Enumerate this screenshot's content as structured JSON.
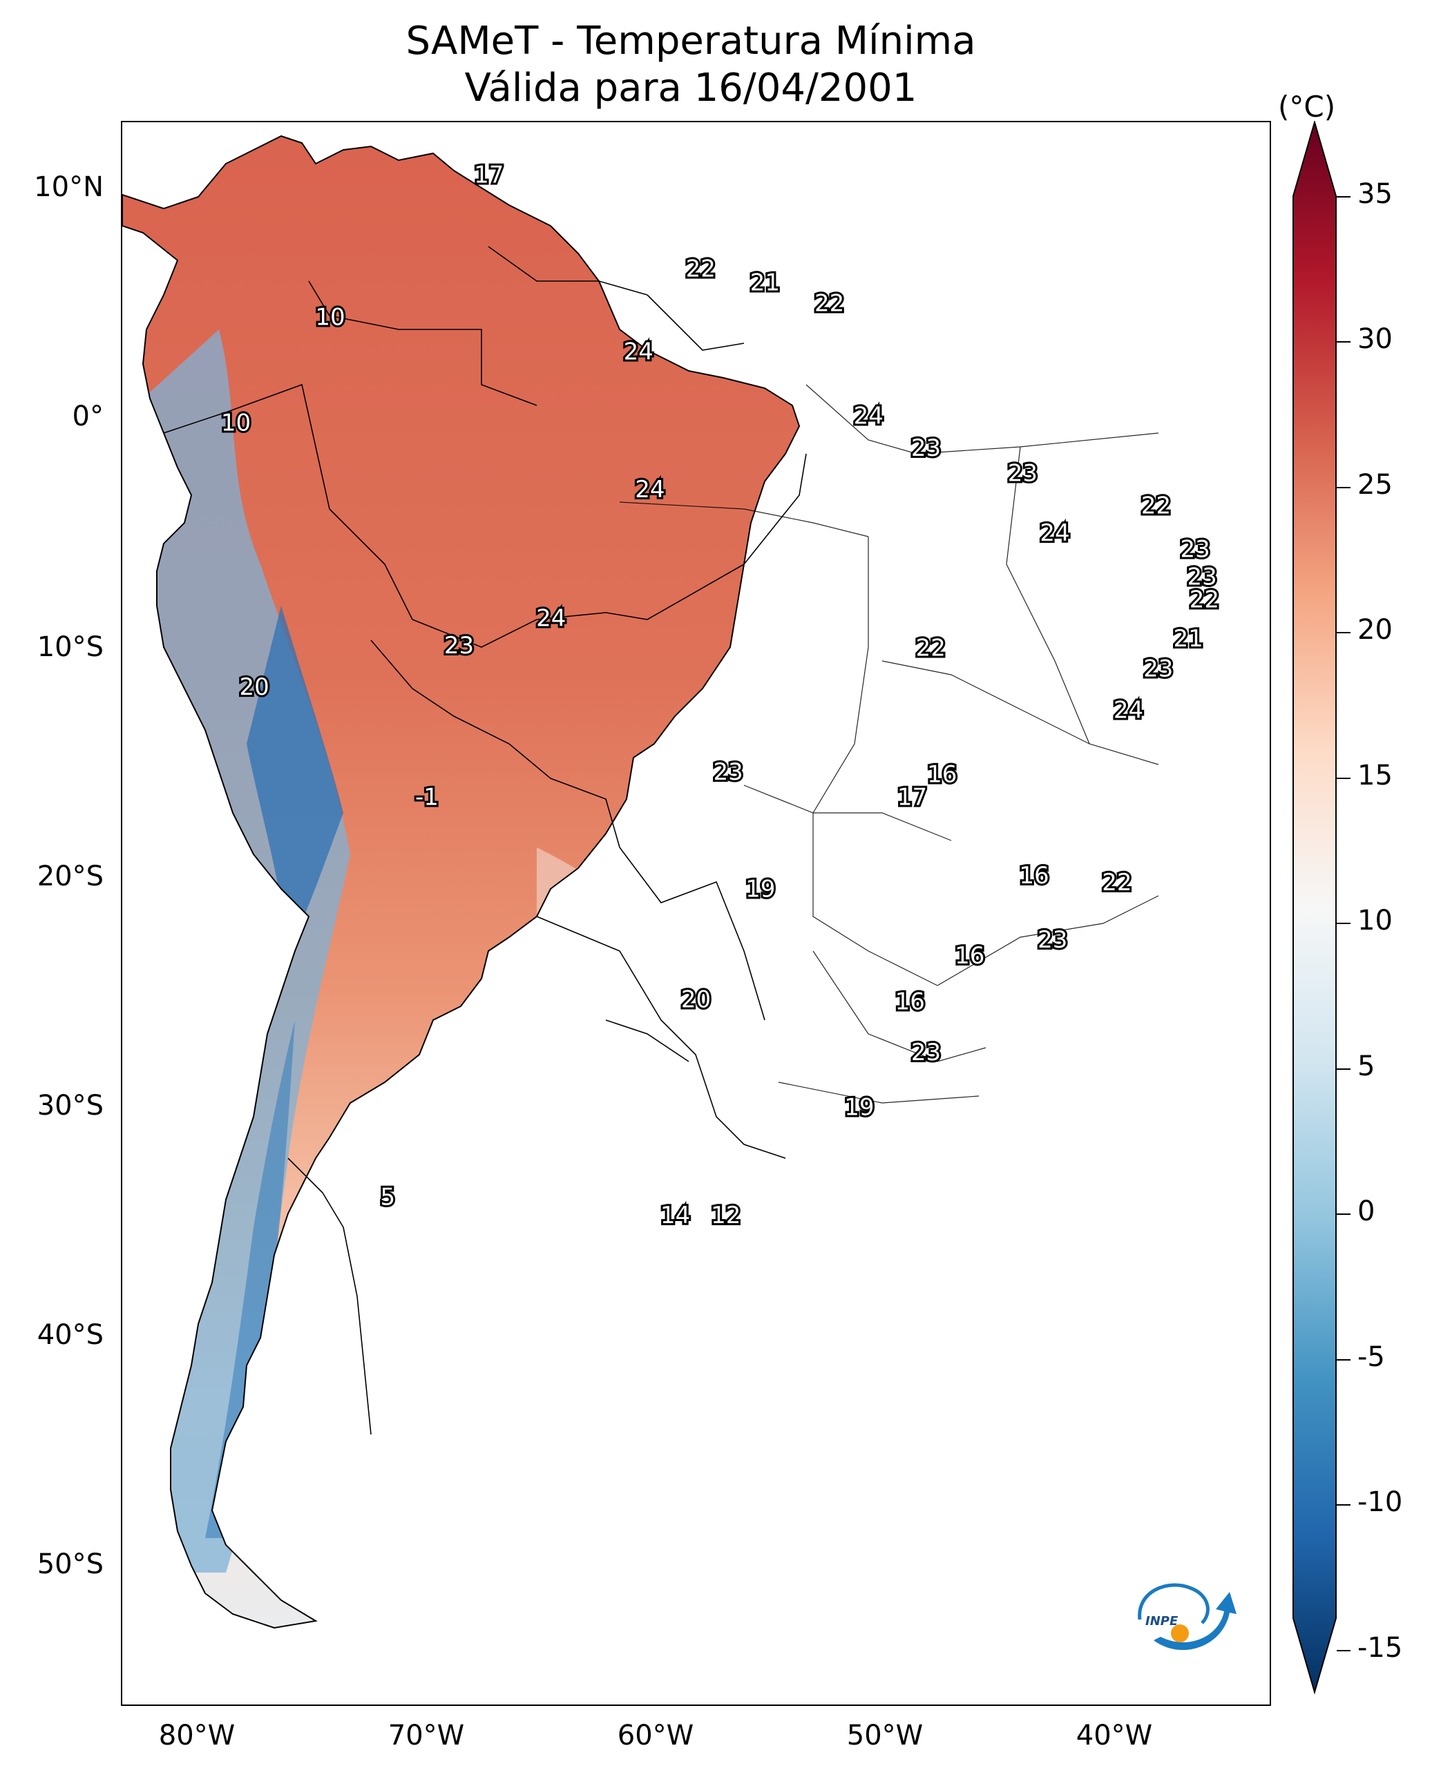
{
  "title": {
    "line1": "SAMeT - Temperatura Mínima",
    "line2": "Válida para 16/04/2001"
  },
  "latitude_labels": [
    "10°N",
    "0°",
    "10°S",
    "20°S",
    "30°S",
    "40°S",
    "50°S"
  ],
  "longitude_labels": [
    "80°W",
    "70°W",
    "60°W",
    "50°W",
    "40°W"
  ],
  "colorbar": {
    "unit": "(°C)",
    "ticks": [
      "35",
      "30",
      "25",
      "20",
      "15",
      "10",
      "5",
      "0",
      "-5",
      "-10",
      "-15"
    ],
    "range": [
      -15,
      35
    ],
    "colormap": "RdBu_r",
    "colors": [
      "#053061",
      "#2166ac",
      "#4393c3",
      "#92c5de",
      "#d1e5f0",
      "#f7f7f7",
      "#fddbc7",
      "#f4a582",
      "#d6604d",
      "#b2182b",
      "#67001f"
    ]
  },
  "contour_labels": [
    {
      "text": "17",
      "lon": -67.0,
      "lat": 10.6
    },
    {
      "text": "10",
      "lon": -73.9,
      "lat": 4.4
    },
    {
      "text": "10",
      "lon": -78.0,
      "lat": -0.2
    },
    {
      "text": "22",
      "lon": -57.8,
      "lat": 6.5
    },
    {
      "text": "21",
      "lon": -55.0,
      "lat": 5.9
    },
    {
      "text": "22",
      "lon": -52.2,
      "lat": 5.0
    },
    {
      "text": "24",
      "lon": -60.5,
      "lat": 2.9
    },
    {
      "text": "24",
      "lon": -50.5,
      "lat": 0.1
    },
    {
      "text": "23",
      "lon": -48.0,
      "lat": -1.3
    },
    {
      "text": "24",
      "lon": -60.0,
      "lat": -3.1
    },
    {
      "text": "23",
      "lon": -43.8,
      "lat": -2.4
    },
    {
      "text": "22",
      "lon": -38.0,
      "lat": -3.8
    },
    {
      "text": "24",
      "lon": -42.4,
      "lat": -5.0
    },
    {
      "text": "23",
      "lon": -36.3,
      "lat": -5.7
    },
    {
      "text": "23",
      "lon": -36.0,
      "lat": -6.9
    },
    {
      "text": "22",
      "lon": -35.9,
      "lat": -7.9
    },
    {
      "text": "24",
      "lon": -64.3,
      "lat": -8.7
    },
    {
      "text": "23",
      "lon": -68.3,
      "lat": -9.9
    },
    {
      "text": "22",
      "lon": -47.8,
      "lat": -10.0
    },
    {
      "text": "21",
      "lon": -36.6,
      "lat": -9.6
    },
    {
      "text": "23",
      "lon": -37.9,
      "lat": -10.9
    },
    {
      "text": "20",
      "lon": -77.2,
      "lat": -11.7
    },
    {
      "text": "24",
      "lon": -39.2,
      "lat": -12.7
    },
    {
      "text": "23",
      "lon": -56.6,
      "lat": -15.4
    },
    {
      "text": "16",
      "lon": -47.3,
      "lat": -15.5
    },
    {
      "text": "17",
      "lon": -48.6,
      "lat": -16.5
    },
    {
      "text": "-1",
      "lon": -69.7,
      "lat": -16.5
    },
    {
      "text": "16",
      "lon": -43.3,
      "lat": -19.9
    },
    {
      "text": "22",
      "lon": -39.7,
      "lat": -20.2
    },
    {
      "text": "19",
      "lon": -55.2,
      "lat": -20.5
    },
    {
      "text": "23",
      "lon": -42.5,
      "lat": -22.7
    },
    {
      "text": "16",
      "lon": -46.1,
      "lat": -23.4
    },
    {
      "text": "20",
      "lon": -58.0,
      "lat": -25.3
    },
    {
      "text": "16",
      "lon": -48.7,
      "lat": -25.4
    },
    {
      "text": "23",
      "lon": -48.0,
      "lat": -27.6
    },
    {
      "text": "19",
      "lon": -50.9,
      "lat": -30.0
    },
    {
      "text": "5",
      "lon": -71.4,
      "lat": -33.9
    },
    {
      "text": "14",
      "lon": -58.9,
      "lat": -34.7
    },
    {
      "text": "12",
      "lon": -56.7,
      "lat": -34.7
    }
  ],
  "logo": {
    "text": "INPE"
  }
}
